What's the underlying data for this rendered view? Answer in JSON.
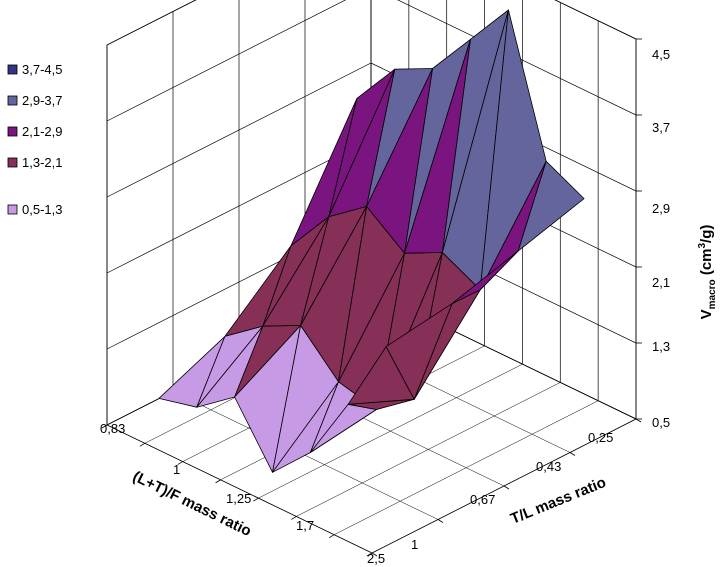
{
  "chart_data": {
    "type": "surface3d",
    "z_axis": {
      "label_main": "V",
      "label_sub": "macro",
      "label_mid": " (cm",
      "label_sup": "3",
      "label_end": "/g)",
      "ticks": [
        "0,5",
        "1,3",
        "2,1",
        "2,9",
        "3,7",
        "4,5"
      ],
      "range": [
        0.5,
        4.5
      ]
    },
    "left_axis": {
      "label": "(L+T)/F mass ratio",
      "ticks": [
        "0,83",
        "1",
        "1,25",
        "1,7",
        "2,5"
      ]
    },
    "right_axis": {
      "label": "T/L mass ratio",
      "ticks": [
        "0,25",
        "0,43",
        "0,67",
        "1"
      ]
    },
    "legend": [
      {
        "label": "3,7-4,5",
        "color": "#343487"
      },
      {
        "label": "2,9-3,7",
        "color": "#65659e"
      },
      {
        "label": "2,1-2,9",
        "color": "#7a1580"
      },
      {
        "label": "1,3-2,1",
        "color": "#862f57"
      },
      {
        "label": "0,5-1,3",
        "color": "#c79ae6"
      }
    ],
    "surface_rows_note": "rows = (L+T)/F from 0,83 to 2,5; columns = T/L from 1 to 0,25",
    "z_values": [
      [
        2.4,
        2.5,
        2.7,
        2.9
      ],
      [
        1.6,
        1.3,
        2.1,
        3.1
      ],
      [
        0.9,
        1.0,
        2.3,
        4.5
      ],
      [
        0.5,
        1.1,
        2.1,
        4.0
      ],
      [
        1.1,
        1.5,
        2.4,
        3.5
      ],
      [
        0.8,
        1.3,
        2.1,
        3.3
      ],
      [
        0.7,
        1.0,
        1.6,
        2.8
      ]
    ]
  }
}
